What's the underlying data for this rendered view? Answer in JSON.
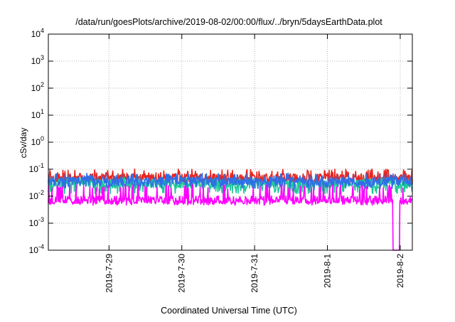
{
  "chart_data": {
    "type": "line",
    "title": "/data/run/goesPlots/archive/2019-08-02/00:00/flux/../bryn/5daysEarthData.plot",
    "xlabel": "Coordinated Universal Time (UTC)",
    "ylabel": "cSv/day",
    "yscale": "log",
    "ylim": [
      0.0001,
      10000
    ],
    "y_ticks": [
      {
        "value": 0.0001,
        "base": "10",
        "exp": "-4"
      },
      {
        "value": 0.001,
        "base": "10",
        "exp": "-3"
      },
      {
        "value": 0.01,
        "base": "10",
        "exp": "-2"
      },
      {
        "value": 0.1,
        "base": "10",
        "exp": "-1"
      },
      {
        "value": 1,
        "base": "10",
        "exp": "0"
      },
      {
        "value": 10,
        "base": "10",
        "exp": "1"
      },
      {
        "value": 100,
        "base": "10",
        "exp": "2"
      },
      {
        "value": 1000,
        "base": "10",
        "exp": "3"
      },
      {
        "value": 10000,
        "base": "10",
        "exp": "4"
      }
    ],
    "xlim": [
      "2019-07-28T04:00",
      "2019-08-02T04:00"
    ],
    "x_ticks": [
      {
        "value": "2019-07-29T00:00",
        "label": "2019-7-29"
      },
      {
        "value": "2019-07-30T00:00",
        "label": "2019-7-30"
      },
      {
        "value": "2019-07-31T00:00",
        "label": "2019-7-31"
      },
      {
        "value": "2019-08-01T00:00",
        "label": "2019-8-1"
      },
      {
        "value": "2019-08-02T00:00",
        "label": "2019-8-2"
      }
    ],
    "grid": true,
    "legend": "none",
    "series": [
      {
        "color": "#e8251f",
        "level": 0.048,
        "amp_lo": 0.72,
        "amp_hi": 1.75,
        "seed": 11
      },
      {
        "color": "#1dc99a",
        "level": 0.028,
        "amp_lo": 0.55,
        "amp_hi": 1.5,
        "seed": 23
      },
      {
        "color": "#2f6fe6",
        "level": 0.036,
        "amp_lo": 0.65,
        "amp_hi": 1.65,
        "seed": 37
      },
      {
        "color": "#ff00ff",
        "level": 0.0072,
        "amp_lo": 0.8,
        "amp_hi": 3.2,
        "seed": 53,
        "dropout": {
          "x": "2019-08-01T22:40",
          "to": 0.0001
        }
      }
    ]
  }
}
